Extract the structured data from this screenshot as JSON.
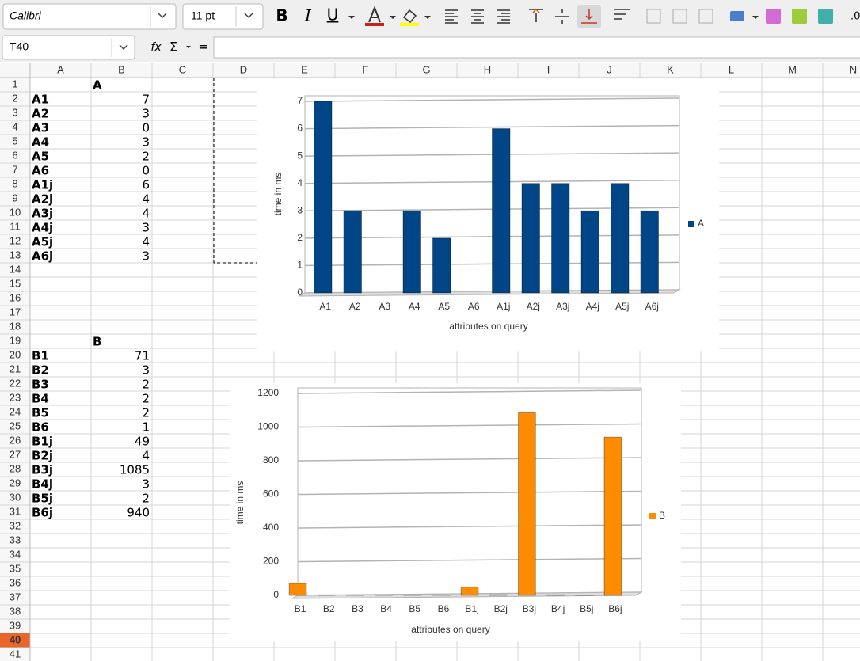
{
  "toolbar": {
    "font_name": "Calibri",
    "font_size": "11 pt",
    "format_buttons": [
      "B",
      "I",
      "U"
    ],
    "number_format": ".0"
  },
  "formula_bar": {
    "cell_ref": "T40",
    "icons": [
      "fx",
      "Σ",
      "="
    ]
  },
  "sheet": {
    "columns": [
      "A",
      "B",
      "C",
      "D",
      "E",
      "F",
      "G",
      "H",
      "I",
      "J",
      "K",
      "L",
      "M",
      "N"
    ],
    "rows": [
      1,
      2,
      3,
      4,
      5,
      6,
      7,
      8,
      9,
      10,
      11,
      12,
      13,
      14,
      15,
      16,
      17,
      18,
      19,
      20,
      21,
      22,
      23,
      24,
      25,
      26,
      27,
      28,
      29,
      30,
      31,
      32,
      33,
      34,
      35,
      36,
      37,
      38,
      39,
      40,
      41
    ],
    "cells": {
      "B1": "A",
      "A2": "A1",
      "B2": 7,
      "A3": "A2",
      "B3": 3,
      "A4": "A3",
      "B4": 0,
      "A5": "A4",
      "B5": 3,
      "A6": "A5",
      "B6": 2,
      "A7": "A6",
      "B7": 0,
      "A8": "A1j",
      "B8": 6,
      "A9": "A2j",
      "B9": 4,
      "A10": "A3j",
      "B10": 4,
      "A11": "A4j",
      "B11": 3,
      "A12": "A5j",
      "B12": 4,
      "A13": "A6j",
      "B13": 3,
      "B19": "B",
      "A20": "B1",
      "B20": 71,
      "A21": "B2",
      "B21": 3,
      "A22": "B3",
      "B22": 2,
      "A23": "B4",
      "B23": 2,
      "A24": "B5",
      "B24": 2,
      "A25": "B6",
      "B25": 1,
      "A26": "B1j",
      "B26": 49,
      "A27": "B2j",
      "B27": 4,
      "A28": "B3j",
      "B28": 1085,
      "A29": "B4j",
      "B29": 3,
      "A30": "B5j",
      "B30": 2,
      "A31": "B6j",
      "B31": 940
    }
  },
  "chart_data": [
    {
      "type": "bar",
      "categories": [
        "A1",
        "A2",
        "A3",
        "A4",
        "A5",
        "A6",
        "A1j",
        "A2j",
        "A3j",
        "A4j",
        "A5j",
        "A6j"
      ],
      "series": [
        {
          "name": "A",
          "color": "#004586",
          "values": [
            7,
            3,
            0,
            3,
            2,
            0,
            6,
            4,
            4,
            3,
            4,
            3
          ]
        }
      ],
      "ylim": [
        0,
        7
      ],
      "yticks": [
        0,
        1,
        2,
        3,
        4,
        5,
        6,
        7
      ],
      "ylabel": "time in ms",
      "xlabel": "attributes on query",
      "grid": true,
      "legend": "right"
    },
    {
      "type": "bar",
      "categories": [
        "B1",
        "B2",
        "B3",
        "B4",
        "B5",
        "B6",
        "B1j",
        "B2j",
        "B3j",
        "B4j",
        "B5j",
        "B6j"
      ],
      "series": [
        {
          "name": "B",
          "color": "#ff8c00",
          "values": [
            71,
            3,
            2,
            2,
            2,
            1,
            49,
            4,
            1085,
            3,
            2,
            940
          ]
        }
      ],
      "ylim": [
        0,
        1200
      ],
      "yticks": [
        0,
        200,
        400,
        600,
        800,
        1000,
        1200
      ],
      "ylabel": "time in ms",
      "xlabel": "attributes on query",
      "grid": true,
      "legend": "right"
    }
  ]
}
